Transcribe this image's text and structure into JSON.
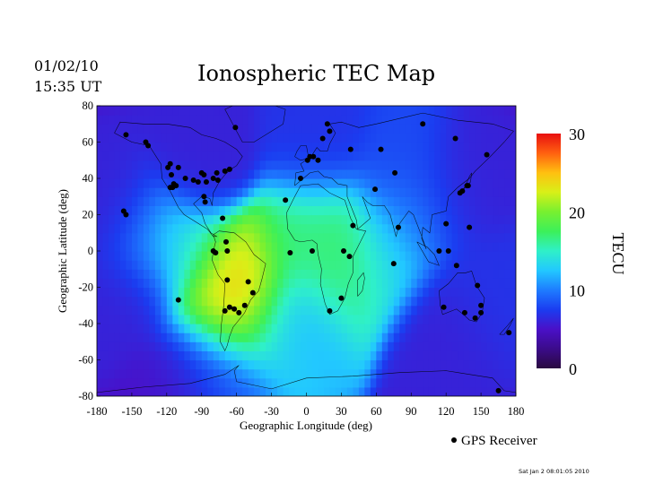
{
  "header": {
    "date": "01/02/10",
    "time": "15:35 UT"
  },
  "legend": {
    "label": "GPS Receiver"
  },
  "footer": {
    "timestamp": "Sat Jan  2 08:01:05 2010"
  },
  "colors": {
    "marker": "#000000",
    "colormap": [
      "#2a0a40",
      "#3b0b8a",
      "#4a10c8",
      "#1b3cf0",
      "#1e7cff",
      "#22c8ff",
      "#2ff0c8",
      "#3cf05a",
      "#78f030",
      "#d8f018",
      "#ffc010",
      "#ff6010",
      "#e81010"
    ]
  },
  "chart_data": {
    "type": "heatmap",
    "title": "Ionospheric TEC Map",
    "xlabel": "Geographic Longitude (deg)",
    "ylabel": "Geographic Latitude (deg)",
    "xlim": [
      -180,
      180
    ],
    "ylim": [
      -80,
      80
    ],
    "xticks": [
      -180,
      -150,
      -120,
      -90,
      -60,
      -30,
      0,
      30,
      60,
      90,
      120,
      150,
      180
    ],
    "yticks": [
      80,
      60,
      40,
      20,
      0,
      -20,
      -40,
      -60,
      -80
    ],
    "colorbar": {
      "label": "TECU",
      "range": [
        0,
        30
      ],
      "ticks": [
        30,
        20,
        10,
        0
      ]
    },
    "tec_features": [
      {
        "lon": -60,
        "lat": -25,
        "tec": 29
      },
      {
        "lon": -55,
        "lat": -10,
        "tec": 22
      },
      {
        "lon": -75,
        "lat": -35,
        "tec": 20
      },
      {
        "lon": -10,
        "lat": 0,
        "tec": 17
      },
      {
        "lon": 10,
        "lat": 15,
        "tec": 16
      },
      {
        "lon": 25,
        "lat": -10,
        "tec": 17
      },
      {
        "lon": 30,
        "lat": 0,
        "tec": 18
      },
      {
        "lon": -100,
        "lat": 0,
        "tec": 15
      },
      {
        "lon": -130,
        "lat": 5,
        "tec": 12
      },
      {
        "lon": 60,
        "lat": -5,
        "tec": 14
      },
      {
        "lon": 75,
        "lat": 10,
        "tec": 12
      },
      {
        "lon": -30,
        "lat": -40,
        "tec": 13
      },
      {
        "lon": 0,
        "lat": -30,
        "tec": 12
      },
      {
        "lon": 100,
        "lat": 20,
        "tec": 9
      },
      {
        "lon": 130,
        "lat": 30,
        "tec": 6
      },
      {
        "lon": -150,
        "lat": -20,
        "tec": 6
      },
      {
        "lon": -160,
        "lat": 20,
        "tec": 6
      },
      {
        "lon": 120,
        "lat": -40,
        "tec": 6
      },
      {
        "lon": 150,
        "lat": -20,
        "tec": 7
      },
      {
        "lon": -75,
        "lat": -65,
        "tec": 9
      },
      {
        "lon": -100,
        "lat": -65,
        "tec": 5
      },
      {
        "lon": 10,
        "lat": 50,
        "tec": 7
      },
      {
        "lon": 80,
        "lat": 40,
        "tec": 8
      },
      {
        "lon": -90,
        "lat": 45,
        "tec": 6
      }
    ],
    "tec_background": 4,
    "gps_receivers": [
      [
        -155,
        64
      ],
      [
        -117,
        48
      ],
      [
        -119,
        46
      ],
      [
        -116,
        42
      ],
      [
        -114,
        37
      ],
      [
        -112,
        36
      ],
      [
        -104,
        40
      ],
      [
        -97,
        39
      ],
      [
        -90,
        43
      ],
      [
        -88,
        42
      ],
      [
        -86,
        38
      ],
      [
        -80,
        40
      ],
      [
        -77,
        43
      ],
      [
        -76,
        39
      ],
      [
        -70,
        44
      ],
      [
        -66,
        45
      ],
      [
        -110,
        46
      ],
      [
        -93,
        38
      ],
      [
        -88,
        30
      ],
      [
        -87,
        27
      ],
      [
        -72,
        18
      ],
      [
        -61,
        68
      ],
      [
        -136,
        58
      ],
      [
        -138,
        60
      ],
      [
        -157,
        22
      ],
      [
        -155,
        20
      ],
      [
        -115,
        35
      ],
      [
        -117,
        35
      ],
      [
        -80,
        0
      ],
      [
        -78,
        -1
      ],
      [
        -68,
        0
      ],
      [
        -69,
        5
      ],
      [
        -50,
        -17
      ],
      [
        -68,
        -16
      ],
      [
        -66,
        -31
      ],
      [
        -62,
        -32
      ],
      [
        -58,
        -34
      ],
      [
        -53,
        -30
      ],
      [
        -46,
        -23
      ],
      [
        -70,
        -33
      ],
      [
        -110,
        -27
      ],
      [
        -18,
        28
      ],
      [
        -5,
        40
      ],
      [
        1,
        50
      ],
      [
        3,
        52
      ],
      [
        6,
        52
      ],
      [
        10,
        50
      ],
      [
        14,
        62
      ],
      [
        18,
        70
      ],
      [
        20,
        66
      ],
      [
        38,
        56
      ],
      [
        64,
        56
      ],
      [
        76,
        43
      ],
      [
        75,
        -7
      ],
      [
        40,
        14
      ],
      [
        59,
        34
      ],
      [
        5,
        0
      ],
      [
        32,
        0
      ],
      [
        37,
        -3
      ],
      [
        30,
        -26
      ],
      [
        20,
        -33
      ],
      [
        -14,
        -1
      ],
      [
        79,
        13
      ],
      [
        114,
        0
      ],
      [
        122,
        0
      ],
      [
        118,
        -31
      ],
      [
        132,
        32
      ],
      [
        138,
        36
      ],
      [
        139,
        36
      ],
      [
        128,
        62
      ],
      [
        100,
        70
      ],
      [
        155,
        53
      ],
      [
        140,
        13
      ],
      [
        129,
        -8
      ],
      [
        147,
        -19
      ],
      [
        136,
        -34
      ],
      [
        145,
        -37
      ],
      [
        150,
        -30
      ],
      [
        150,
        -34
      ],
      [
        174,
        -45
      ],
      [
        165,
        -77
      ],
      [
        134,
        33
      ],
      [
        120,
        15
      ]
    ]
  }
}
